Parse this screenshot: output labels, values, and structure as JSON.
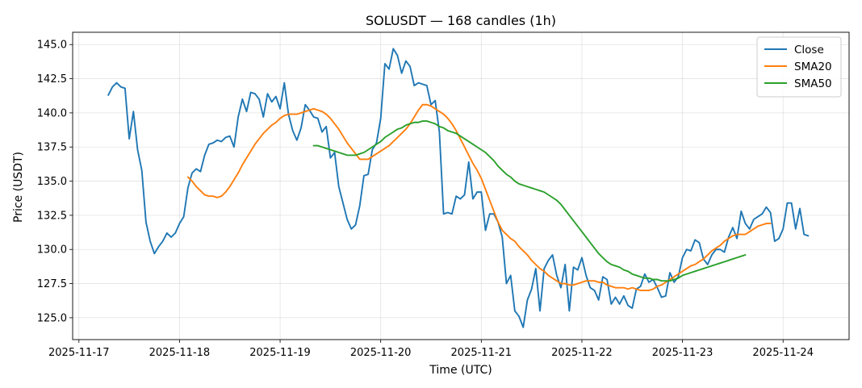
{
  "chart_data": {
    "type": "line",
    "title": "SOLUSDT — 168 candles (1h)",
    "xlabel": "Time (UTC)",
    "ylabel": "Price (USDT)",
    "x_ticks": [
      "2025-11-17",
      "2025-11-18",
      "2025-11-19",
      "2025-11-20",
      "2025-11-21",
      "2025-11-22",
      "2025-11-23",
      "2025-11-24"
    ],
    "y_ticks": [
      "125.0",
      "127.5",
      "130.0",
      "132.5",
      "135.0",
      "137.5",
      "140.0",
      "142.5",
      "145.0"
    ],
    "xlim": [
      "2025-11-16T22:30",
      "2025-11-24T15:45"
    ],
    "ylim": [
      123.4,
      145.9
    ],
    "grid": true,
    "legend_position": "top-right",
    "series": [
      {
        "name": "Close",
        "color": "#1f77b4",
        "x_start": "2025-11-17T07:00",
        "x_step_hours": 1,
        "values": [
          141.3,
          141.9,
          142.2,
          141.9,
          141.8,
          138.1,
          140.1,
          137.3,
          135.8,
          132.0,
          130.6,
          129.7,
          130.2,
          130.6,
          131.2,
          130.9,
          131.2,
          131.9,
          132.4,
          134.5,
          135.6,
          135.9,
          135.7,
          136.9,
          137.7,
          137.8,
          138.0,
          137.9,
          138.2,
          138.3,
          137.5,
          139.7,
          141.0,
          140.1,
          141.5,
          141.4,
          141.0,
          139.7,
          141.4,
          140.8,
          141.2,
          140.3,
          142.2,
          139.9,
          138.7,
          138.0,
          138.9,
          140.6,
          140.2,
          139.7,
          139.6,
          138.6,
          139.0,
          136.7,
          137.1,
          134.6,
          133.4,
          132.2,
          131.5,
          131.8,
          133.2,
          135.4,
          135.5,
          137.3,
          137.8,
          139.6,
          143.6,
          143.2,
          144.7,
          144.2,
          142.9,
          143.8,
          143.4,
          142.0,
          142.2,
          142.1,
          142.0,
          140.6,
          140.9,
          138.6,
          132.6,
          132.7,
          132.6,
          133.9,
          133.7,
          134.0,
          136.4,
          133.7,
          134.2,
          134.2,
          131.4,
          132.6,
          132.6,
          132.0,
          130.9,
          127.5,
          128.1,
          125.5,
          125.1,
          124.3,
          126.3,
          127.1,
          128.6,
          125.5,
          128.6,
          129.2,
          129.6,
          128.1,
          127.2,
          128.9,
          125.5,
          128.7,
          128.5,
          129.4,
          128.1,
          127.2,
          127.0,
          126.3,
          128.0,
          127.8,
          126.0,
          126.5,
          126.0,
          126.6,
          125.9,
          125.7,
          127.1,
          127.3,
          128.2,
          127.6,
          127.8,
          127.2,
          126.5,
          126.6,
          128.3,
          127.6,
          128.0,
          129.4,
          130.0,
          129.9,
          130.7,
          130.5,
          129.3,
          128.9,
          129.6,
          130.0,
          130.0,
          129.8,
          130.9,
          131.6,
          130.8,
          132.8,
          131.9,
          131.5,
          132.2,
          132.4,
          132.6,
          133.1,
          132.7,
          130.6,
          130.8,
          131.5,
          133.4,
          133.4,
          131.5,
          133.0,
          131.1,
          131.0
        ]
      },
      {
        "name": "SMA20",
        "color": "#ff7f0e",
        "x_start": "2025-11-18T02:00",
        "x_step_hours": 1,
        "values": [
          135.3,
          135.0,
          134.6,
          134.3,
          134.0,
          133.9,
          133.9,
          133.8,
          133.9,
          134.2,
          134.6,
          135.1,
          135.6,
          136.2,
          136.7,
          137.2,
          137.7,
          138.1,
          138.5,
          138.8,
          139.1,
          139.3,
          139.6,
          139.8,
          139.9,
          139.9,
          139.9,
          140.0,
          140.1,
          140.2,
          140.3,
          140.2,
          140.1,
          139.9,
          139.6,
          139.2,
          138.8,
          138.3,
          137.8,
          137.4,
          137.0,
          136.6,
          136.6,
          136.6,
          136.8,
          137.0,
          137.2,
          137.4,
          137.6,
          137.9,
          138.2,
          138.5,
          138.8,
          139.2,
          139.7,
          140.2,
          140.6,
          140.6,
          140.5,
          140.3,
          140.1,
          139.9,
          139.6,
          139.2,
          138.7,
          138.1,
          137.5,
          136.9,
          136.3,
          135.8,
          135.2,
          134.4,
          133.6,
          132.8,
          132.0,
          131.4,
          131.1,
          130.8,
          130.6,
          130.2,
          129.9,
          129.6,
          129.2,
          128.9,
          128.6,
          128.4,
          128.1,
          127.9,
          127.7,
          127.5,
          127.5,
          127.4,
          127.4,
          127.5,
          127.6,
          127.7,
          127.7,
          127.7,
          127.6,
          127.6,
          127.4,
          127.3,
          127.2,
          127.2,
          127.2,
          127.1,
          127.2,
          127.1,
          127.0,
          127.0,
          127.0,
          127.1,
          127.3,
          127.4,
          127.6,
          127.8,
          128.0,
          128.2,
          128.4,
          128.6,
          128.8,
          128.9,
          129.1,
          129.3,
          129.6,
          129.9,
          130.1,
          130.3,
          130.6,
          130.8,
          131.0,
          131.1,
          131.1,
          131.1,
          131.3,
          131.5,
          131.7,
          131.8,
          131.9,
          131.9
        ]
      },
      {
        "name": "SMA50",
        "color": "#2ca02c",
        "x_start": "2025-11-19T08:00",
        "x_step_hours": 1,
        "values": [
          137.6,
          137.6,
          137.5,
          137.4,
          137.3,
          137.2,
          137.1,
          137.0,
          136.9,
          136.9,
          136.9,
          137.0,
          137.1,
          137.3,
          137.5,
          137.7,
          137.9,
          138.2,
          138.4,
          138.6,
          138.8,
          138.9,
          139.1,
          139.2,
          139.3,
          139.3,
          139.4,
          139.4,
          139.3,
          139.2,
          139.0,
          138.9,
          138.7,
          138.6,
          138.5,
          138.3,
          138.1,
          137.9,
          137.7,
          137.5,
          137.3,
          137.1,
          136.8,
          136.5,
          136.1,
          135.8,
          135.5,
          135.3,
          135.0,
          134.8,
          134.7,
          134.6,
          134.5,
          134.4,
          134.3,
          134.2,
          134.0,
          133.8,
          133.6,
          133.3,
          132.9,
          132.5,
          132.1,
          131.7,
          131.3,
          130.9,
          130.5,
          130.1,
          129.7,
          129.4,
          129.1,
          128.9,
          128.8,
          128.7,
          128.5,
          128.4,
          128.2,
          128.1,
          128.0,
          127.9,
          127.9,
          127.8,
          127.8,
          127.7,
          127.7,
          127.7,
          127.8,
          127.9,
          128.1,
          128.2,
          128.3,
          128.4,
          128.5,
          128.6,
          128.7,
          128.8,
          128.9,
          129.0,
          129.1,
          129.2,
          129.3,
          129.4,
          129.5,
          129.6
        ]
      }
    ]
  }
}
